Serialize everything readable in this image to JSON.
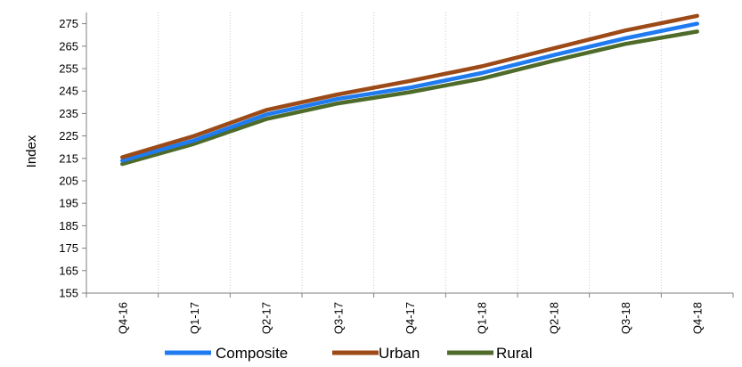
{
  "chart_data": {
    "type": "line",
    "categories": [
      "Q4-16",
      "Q1-17",
      "Q2-17",
      "Q3-17",
      "Q4-17",
      "Q1-18",
      "Q2-18",
      "Q3-18",
      "Q4-18"
    ],
    "series": [
      {
        "name": "Composite",
        "color": "#1F7BEF",
        "values": [
          214,
          223,
          234.5,
          241.5,
          246.5,
          253,
          261,
          268.5,
          275
        ]
      },
      {
        "name": "Urban",
        "color": "#9C4A17",
        "values": [
          215.5,
          225,
          236.5,
          243.5,
          249.5,
          256,
          264,
          272,
          278.5
        ]
      },
      {
        "name": "Rural",
        "color": "#4E6B2A",
        "values": [
          212.5,
          221.5,
          232.5,
          239.5,
          244.5,
          250.5,
          258.5,
          266,
          271.5
        ]
      }
    ],
    "xlabel": "",
    "ylabel": "Index",
    "ylim": [
      155,
      280
    ],
    "yticks": [
      155,
      165,
      175,
      185,
      195,
      205,
      215,
      225,
      235,
      245,
      255,
      265,
      275
    ],
    "x_grid": true,
    "y_grid": false,
    "legend_position": "bottom"
  }
}
